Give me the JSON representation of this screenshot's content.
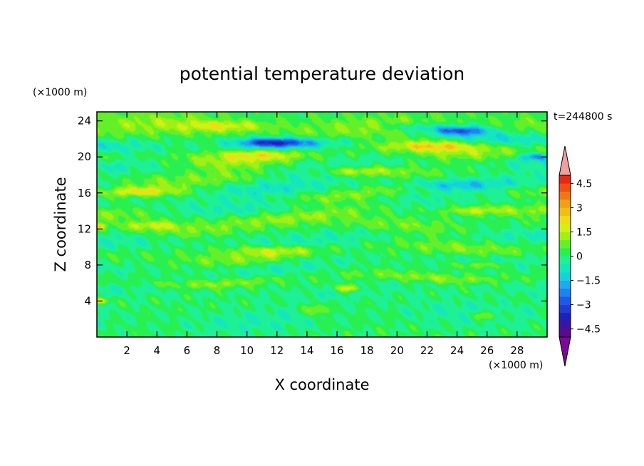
{
  "chart_data": {
    "type": "heatmap",
    "title": "potential temperature deviation",
    "xlabel": "X coordinate",
    "ylabel": "Z coordinate",
    "x_unit": "(×1000 m)",
    "y_unit": "(×1000 m)",
    "time_label": "t=244800 s",
    "xlim": [
      0,
      30
    ],
    "ylim": [
      0,
      25
    ],
    "x_ticks": [
      2,
      4,
      6,
      8,
      10,
      12,
      14,
      16,
      18,
      20,
      22,
      24,
      26,
      28
    ],
    "y_ticks": [
      4,
      8,
      12,
      16,
      20,
      24
    ],
    "x_tick_labels": [
      "2",
      "4",
      "6",
      "8",
      "10",
      "12",
      "14",
      "16",
      "18",
      "20",
      "22",
      "24",
      "26",
      "28"
    ],
    "y_tick_labels": [
      "4",
      "8",
      "12",
      "16",
      "20",
      "24"
    ],
    "colorbar": {
      "levels": [
        -5,
        -4.5,
        -4,
        -3.5,
        -3,
        -2.5,
        -2,
        -1.5,
        -1,
        -0.5,
        0,
        0.5,
        1,
        1.5,
        2,
        2.5,
        3,
        3.5,
        4,
        4.5,
        5
      ],
      "colors": [
        "#5a0a8c",
        "#3c14a0",
        "#1e1ebe",
        "#1e3cd2",
        "#1e5ae6",
        "#1e82f0",
        "#1eaaf0",
        "#14d2dc",
        "#14e6be",
        "#1ef096",
        "#28f050",
        "#64f028",
        "#a0f014",
        "#d2f014",
        "#f0dc14",
        "#f0be14",
        "#f0a014",
        "#f07814",
        "#f05014",
        "#e62814"
      ],
      "under_color": "#7a0a9a",
      "over_color": "#f0a0a0",
      "tick_values": [
        4.5,
        3,
        1.5,
        0,
        -1.5,
        -3,
        -4.5
      ],
      "tick_labels": [
        "4.5",
        "3",
        "1.5",
        "0",
        "−1.5",
        "−3",
        "−4.5"
      ]
    },
    "features": [
      {
        "kind": "band",
        "y": 23.3,
        "thickness": 1.4,
        "value": 1.0,
        "amp": 0.5,
        "phase": 0.0
      },
      {
        "kind": "band",
        "y": 21.5,
        "thickness": 0.8,
        "value": -1.3,
        "amp": 0.4,
        "phase": 1.2
      },
      {
        "kind": "band",
        "y": 20.4,
        "thickness": 1.1,
        "value": 1.3,
        "amp": 0.6,
        "phase": 2.1
      },
      {
        "kind": "band",
        "y": 19.0,
        "thickness": 1.0,
        "value": -0.8,
        "amp": 0.5,
        "phase": 0.7
      },
      {
        "kind": "band",
        "y": 18.1,
        "thickness": 0.8,
        "value": 0.8,
        "amp": 0.5,
        "phase": 2.8
      },
      {
        "kind": "band",
        "y": 16.8,
        "thickness": 1.0,
        "value": -1.0,
        "amp": 0.4,
        "phase": 1.8
      },
      {
        "kind": "band",
        "y": 16.0,
        "thickness": 0.7,
        "value": 1.0,
        "amp": 0.6,
        "phase": 0.3
      },
      {
        "kind": "band",
        "y": 14.8,
        "thickness": 0.9,
        "value": -0.7,
        "amp": 0.5,
        "phase": 2.4
      },
      {
        "kind": "band",
        "y": 13.8,
        "thickness": 0.7,
        "value": 0.9,
        "amp": 0.6,
        "phase": 1.1
      },
      {
        "kind": "band",
        "y": 12.4,
        "thickness": 0.8,
        "value": 0.8,
        "amp": 0.5,
        "phase": 3.0
      },
      {
        "kind": "band",
        "y": 10.9,
        "thickness": 1.0,
        "value": -0.7,
        "amp": 0.4,
        "phase": 0.9
      },
      {
        "kind": "band",
        "y": 9.5,
        "thickness": 0.8,
        "value": 0.9,
        "amp": 0.6,
        "phase": 2.0
      },
      {
        "kind": "band",
        "y": 8.0,
        "thickness": 0.9,
        "value": -0.6,
        "amp": 0.5,
        "phase": 1.5
      },
      {
        "kind": "band",
        "y": 6.5,
        "thickness": 0.5,
        "value": 1.0,
        "amp": 0.5,
        "phase": 2.6
      },
      {
        "kind": "band",
        "y": 5.2,
        "thickness": 0.8,
        "value": -0.5,
        "amp": 0.5,
        "phase": 0.4
      },
      {
        "kind": "band",
        "y": 2.3,
        "thickness": 1.5,
        "value": -0.6,
        "amp": 0.5,
        "phase": 1.9
      },
      {
        "kind": "blob",
        "x": 11.8,
        "y": 21.6,
        "sx": 2.4,
        "sy": 0.5,
        "value": -3.6
      },
      {
        "kind": "blob",
        "x": 24.2,
        "y": 22.9,
        "sx": 1.8,
        "sy": 0.5,
        "value": -3.0
      },
      {
        "kind": "blob",
        "x": 29.2,
        "y": 20.0,
        "sx": 1.0,
        "sy": 0.4,
        "value": -2.2
      },
      {
        "kind": "blob",
        "x": 10.5,
        "y": 20.3,
        "sx": 2.5,
        "sy": 0.55,
        "value": 1.6
      },
      {
        "kind": "blob",
        "x": 22.5,
        "y": 21.2,
        "sx": 2.8,
        "sy": 0.5,
        "value": 1.5
      },
      {
        "kind": "blob",
        "x": 8.5,
        "y": 23.4,
        "sx": 3.0,
        "sy": 0.6,
        "value": 1.4
      },
      {
        "kind": "blob",
        "x": 17.0,
        "y": 18.4,
        "sx": 2.5,
        "sy": 0.5,
        "value": 1.4
      },
      {
        "kind": "blob",
        "x": 3.0,
        "y": 16.1,
        "sx": 2.2,
        "sy": 0.45,
        "value": 1.4
      },
      {
        "kind": "blob",
        "x": 25.0,
        "y": 14.0,
        "sx": 2.0,
        "sy": 0.45,
        "value": 1.3
      },
      {
        "kind": "blob",
        "x": 3.8,
        "y": 12.4,
        "sx": 1.8,
        "sy": 0.45,
        "value": 1.3
      },
      {
        "kind": "blob",
        "x": 11.5,
        "y": 9.6,
        "sx": 2.8,
        "sy": 0.5,
        "value": 1.3
      },
      {
        "kind": "blob",
        "x": 25.5,
        "y": 8.0,
        "sx": 2.0,
        "sy": 0.4,
        "value": 1.1
      },
      {
        "kind": "blob",
        "x": 16.8,
        "y": 5.4,
        "sx": 0.8,
        "sy": 0.4,
        "value": 2.2
      },
      {
        "kind": "blob",
        "x": 14.6,
        "y": 3.0,
        "sx": 0.8,
        "sy": 0.6,
        "value": 1.5
      },
      {
        "kind": "blob",
        "x": 26.0,
        "y": 2.4,
        "sx": 1.0,
        "sy": 0.5,
        "value": 1.3
      },
      {
        "kind": "blob",
        "x": 21.0,
        "y": 23.3,
        "sx": 2.0,
        "sy": 0.45,
        "value": -1.2
      },
      {
        "kind": "blob",
        "x": 24.0,
        "y": 16.8,
        "sx": 3.0,
        "sy": 0.6,
        "value": -1.2
      },
      {
        "kind": "blob",
        "x": 0.2,
        "y": 4.0,
        "sx": 0.5,
        "sy": 0.3,
        "value": 2.2
      },
      {
        "kind": "blob",
        "x": 0.2,
        "y": 12.3,
        "sx": 0.4,
        "sy": 0.3,
        "value": 2.0
      }
    ]
  }
}
